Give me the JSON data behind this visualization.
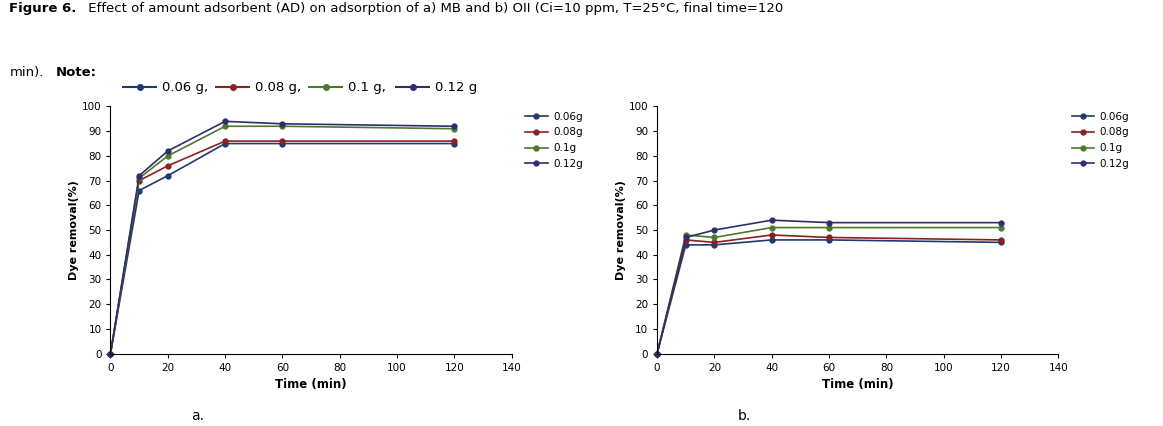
{
  "title_bold": "Figure 6.",
  "title_rest": " Effect of amount adsorbent (AD) on adsorption of a) MB and b) OII (Ci=10 ppm, T=25°C, final time=120",
  "title_line2_normal": "min).",
  "title_line2_bold": "Note:",
  "colors": [
    "#1e3a6e",
    "#8b2020",
    "#4a7a2a",
    "#2e2e6e"
  ],
  "xlabel": "Time (min)",
  "ylabel": "Dye removal(%)",
  "xlim": [
    0,
    140
  ],
  "ylim": [
    0,
    100
  ],
  "xticks": [
    0,
    20,
    40,
    60,
    80,
    100,
    120,
    140
  ],
  "yticks": [
    0,
    10,
    20,
    30,
    40,
    50,
    60,
    70,
    80,
    90,
    100
  ],
  "legend_labels": [
    "0.06g",
    "0.08g",
    "0.1g",
    "0.12g"
  ],
  "note_labels": [
    "0.06 g,",
    "0.08 g,",
    "0.1 g,",
    "0.12 g"
  ],
  "subplot_labels": [
    "a.",
    "b."
  ],
  "chart_a": {
    "time": [
      0,
      10,
      20,
      40,
      60,
      120
    ],
    "series": {
      "0.06g": [
        0,
        66,
        72,
        85,
        85,
        85
      ],
      "0.08g": [
        0,
        70,
        76,
        86,
        86,
        86
      ],
      "0.1g": [
        0,
        71,
        80,
        92,
        92,
        91
      ],
      "0.12g": [
        0,
        72,
        82,
        94,
        93,
        92
      ]
    }
  },
  "chart_b": {
    "time": [
      0,
      10,
      20,
      40,
      60,
      120
    ],
    "series": {
      "0.06g": [
        0,
        44,
        44,
        46,
        46,
        45
      ],
      "0.08g": [
        0,
        46,
        45,
        48,
        47,
        46
      ],
      "0.1g": [
        0,
        48,
        47,
        51,
        51,
        51
      ],
      "0.12g": [
        0,
        47,
        50,
        54,
        53,
        53
      ]
    }
  }
}
